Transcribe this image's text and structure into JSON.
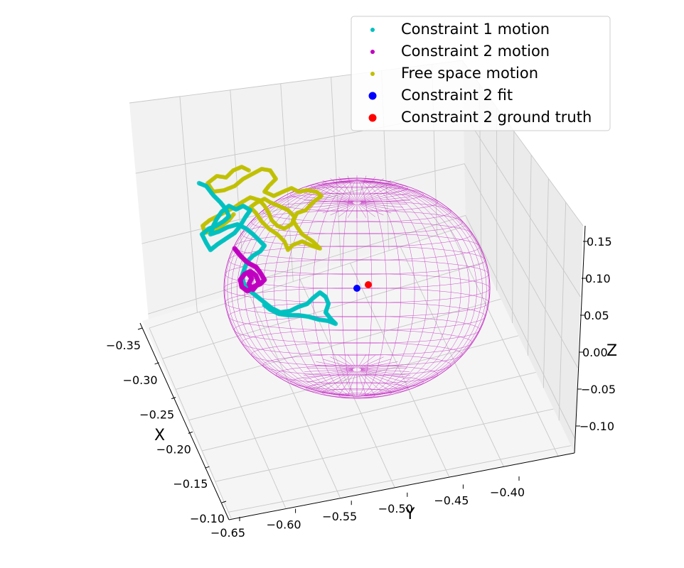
{
  "chart_data": {
    "type": "scatter3d",
    "projection": "3d",
    "xlabel": "X",
    "ylabel": "Y",
    "zlabel": "Z",
    "x_ticks": [
      "−0.35",
      "−0.30",
      "−0.25",
      "−0.20",
      "−0.15",
      "−0.10"
    ],
    "y_ticks": [
      "−0.65",
      "−0.60",
      "−0.55",
      "−0.50",
      "−0.45",
      "−0.40"
    ],
    "z_ticks": [
      "0.15",
      "0.10",
      "0.05",
      "0.00",
      "−0.05",
      "−0.10"
    ],
    "xlim": [
      -0.37,
      -0.08
    ],
    "ylim": [
      -0.67,
      -0.37
    ],
    "zlim": [
      -0.13,
      0.17
    ],
    "grid": true,
    "legend_position": "top-right",
    "series": [
      {
        "name": "Constraint 1 motion",
        "color": "#00bfbf",
        "marker": "small-dot",
        "kind": "trajectory"
      },
      {
        "name": "Constraint 2 motion",
        "color": "#bf00bf",
        "marker": "small-dot",
        "kind": "trajectory"
      },
      {
        "name": "Free space motion",
        "color": "#bfbf00",
        "marker": "small-dot",
        "kind": "trajectory"
      },
      {
        "name": "Constraint 2 fit",
        "color": "#0000ff",
        "marker": "large-dot",
        "kind": "point"
      },
      {
        "name": "Constraint 2 ground truth",
        "color": "#ff0000",
        "marker": "large-dot",
        "kind": "point"
      }
    ],
    "sphere_wireframe": {
      "color": "#bf00bf",
      "description_series": "Constraint 2 fit"
    }
  }
}
